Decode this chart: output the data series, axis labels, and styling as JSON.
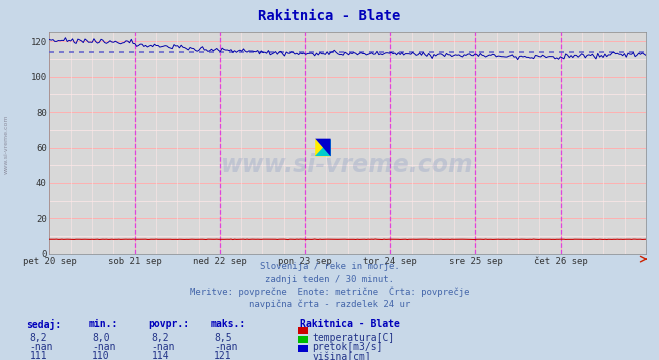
{
  "title": "Rakitnica - Blate",
  "bg_color": "#c8d8e8",
  "plot_bg_color": "#d8d8d8",
  "grid_color_h": "#ffb0b0",
  "grid_color_v": "#ffb0b0",
  "grid_minor_color": "#ffe8e8",
  "x_labels": [
    "pet 20 sep",
    "sob 21 sep",
    "ned 22 sep",
    "pon 23 sep",
    "tor 24 sep",
    "sre 25 sep",
    "čet 26 sep"
  ],
  "y_ticks": [
    0,
    20,
    40,
    60,
    80,
    100,
    120
  ],
  "ylim": [
    0,
    125
  ],
  "subtitle_lines": [
    "Slovenija / reke in morje.",
    "zadnji teden / 30 minut.",
    "Meritve: povprečne  Enote: metrične  Črta: povprečje",
    "navpična črta - razdelek 24 ur"
  ],
  "table_headers": [
    "sedaj:",
    "min.:",
    "povpr.:",
    "maks.:"
  ],
  "table_rows": [
    [
      "8,2",
      "8,0",
      "8,2",
      "8,5",
      "#cc0000",
      "temperatura[C]"
    ],
    [
      "-nan",
      "-nan",
      "-nan",
      "-nan",
      "#00bb00",
      "pretok[m3/s]"
    ],
    [
      "111",
      "110",
      "114",
      "121",
      "#0000cc",
      "višina[cm]"
    ]
  ],
  "station_label": "Rakitnica - Blate",
  "avg_line_value": 114,
  "avg_line_color": "#6666cc",
  "data_line_color": "#0000aa",
  "temp_line_color": "#cc0000",
  "vline_color": "#dd44dd",
  "num_points": 336,
  "watermark": "www.si-vreme.com"
}
